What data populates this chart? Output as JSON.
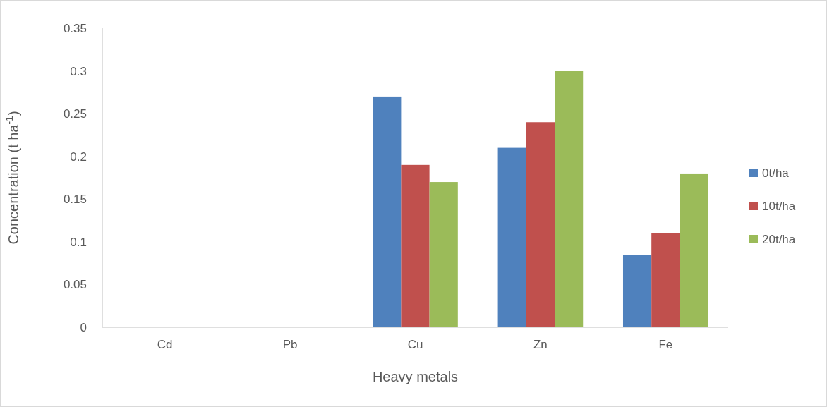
{
  "chart_data": {
    "type": "bar",
    "xlabel": "Heavy metals",
    "ylabel": "Concentration (t ha$^{-1}$)",
    "categories": [
      "Cd",
      "Pb",
      "Cu",
      "Zn",
      "Fe"
    ],
    "series": [
      {
        "name": "0t/ha",
        "color": "#4f81bd",
        "values": [
          0,
          0,
          0.27,
          0.21,
          0.085
        ]
      },
      {
        "name": "10t/ha",
        "color": "#c0504d",
        "values": [
          0,
          0,
          0.19,
          0.24,
          0.11
        ]
      },
      {
        "name": "20t/ha",
        "color": "#9bbb59",
        "values": [
          0,
          0,
          0.17,
          0.3,
          0.18
        ]
      }
    ],
    "ylim": [
      0,
      0.35
    ],
    "yticks": [
      0,
      0.05,
      0.1,
      0.15,
      0.2,
      0.25,
      0.3,
      0.35
    ],
    "grid": false,
    "legend": "right"
  }
}
